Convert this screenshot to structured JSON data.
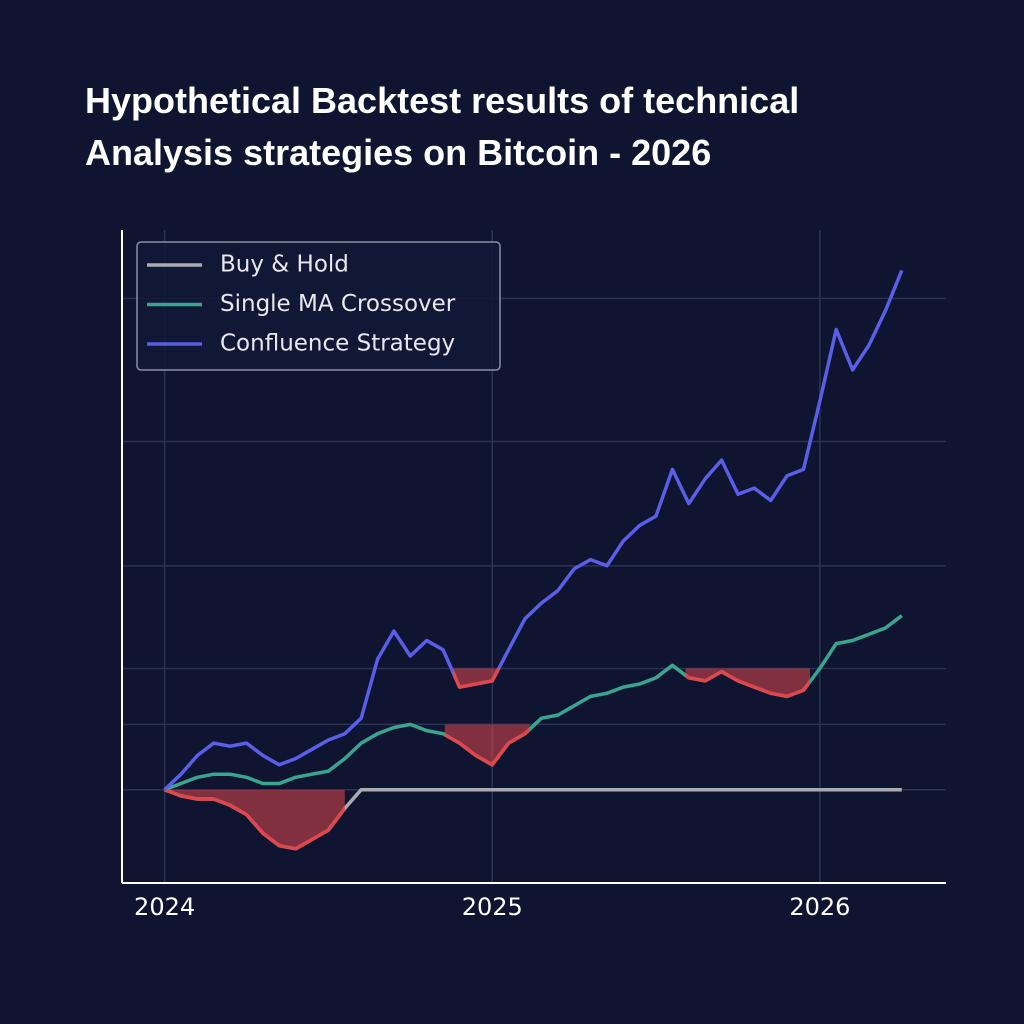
{
  "chart_data": {
    "type": "line",
    "title": "Hypothetical Backtest results of technical Analysis strategies on Bitcoin - 2026",
    "x": [
      2024.0,
      2024.05,
      2024.1,
      2024.15,
      2024.2,
      2024.25,
      2024.3,
      2024.35,
      2024.4,
      2024.45,
      2024.5,
      2024.55,
      2024.6,
      2024.65,
      2024.7,
      2024.75,
      2024.8,
      2024.85,
      2024.9,
      2024.95,
      2025.0,
      2025.05,
      2025.1,
      2025.15,
      2025.2,
      2025.25,
      2025.3,
      2025.35,
      2025.4,
      2025.45,
      2025.5,
      2025.55,
      2025.6,
      2025.65,
      2025.7,
      2025.75,
      2025.8,
      2025.85,
      2025.9,
      2025.95,
      2026.0,
      2026.05,
      2026.1,
      2026.15,
      2026.2,
      2026.25
    ],
    "series": [
      {
        "name": "Buy & Hold",
        "color": "#a9abb0",
        "values": [
          0,
          -2,
          -3,
          -3,
          -5,
          -8,
          -14,
          -18,
          -19,
          -16,
          -13,
          -6,
          0,
          0,
          0,
          0,
          0,
          0,
          0,
          0,
          0,
          0,
          0,
          0,
          0,
          0,
          0,
          0,
          0,
          0,
          0,
          0,
          0,
          0,
          0,
          0,
          0,
          0,
          0,
          0,
          0,
          0,
          0,
          0,
          0,
          0
        ]
      },
      {
        "name": "Single MA Crossover",
        "color": "#3aa58f",
        "values": [
          0,
          2,
          4,
          5,
          5,
          4,
          2,
          2,
          4,
          5,
          6,
          10,
          15,
          18,
          20,
          21,
          19,
          18,
          15,
          11,
          8,
          15,
          18,
          23,
          24,
          27,
          30,
          31,
          33,
          34,
          36,
          40,
          36,
          35,
          38,
          35,
          33,
          31,
          30,
          32,
          39,
          47,
          48,
          50,
          52,
          56
        ]
      },
      {
        "name": "Confluence Strategy",
        "color": "#5b5ee8",
        "values": [
          0,
          5,
          11,
          15,
          14,
          15,
          11,
          8,
          10,
          13,
          16,
          18,
          23,
          42,
          51,
          43,
          48,
          45,
          33,
          34,
          35,
          45,
          55,
          60,
          64,
          71,
          74,
          72,
          80,
          85,
          88,
          103,
          92,
          100,
          106,
          95,
          97,
          93,
          101,
          103,
          125,
          148,
          135,
          143,
          154,
          167
        ]
      }
    ],
    "drawdowns": [
      {
        "series": 0,
        "x0": 2024.0,
        "x1": 2024.55,
        "level": 0
      },
      {
        "series": 1,
        "x0": 2024.855,
        "x1": 2025.115,
        "level": 21
      },
      {
        "series": 2,
        "x0": 2024.88,
        "x1": 2025.05,
        "level": 39
      },
      {
        "series": 1,
        "x0": 2025.59,
        "x1": 2025.97,
        "level": 39
      }
    ],
    "drawdown_color": "#e0474c",
    "xlim": [
      2023.87,
      2026.385
    ],
    "xticks": [
      2024,
      2025,
      2026
    ],
    "ylim": [
      -30,
      180
    ],
    "yticks": [
      0,
      21,
      39,
      72,
      112,
      158
    ],
    "grid": true,
    "legend": "upper left"
  }
}
